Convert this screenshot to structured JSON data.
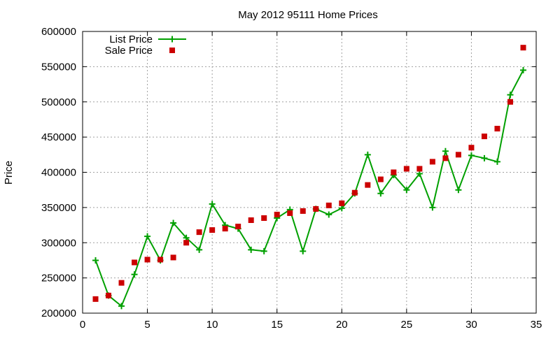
{
  "chart_data": {
    "type": "line",
    "title": "May 2012 95111 Home Prices",
    "xlabel": "",
    "ylabel": "Price",
    "xlim": [
      0,
      35
    ],
    "ylim": [
      200000,
      600000
    ],
    "x_ticks": [
      0,
      5,
      10,
      15,
      20,
      25,
      30,
      35
    ],
    "y_ticks": [
      200000,
      250000,
      300000,
      350000,
      400000,
      450000,
      500000,
      550000,
      600000
    ],
    "grid": true,
    "legend_position": "top-left",
    "colors": {
      "list": "#00a000",
      "sale": "#cc0000",
      "grid": "#a0a0a0",
      "axis": "#000000"
    },
    "series": [
      {
        "name": "List Price",
        "style": "lines+markers",
        "marker": "plus",
        "x": [
          1,
          2,
          3,
          4,
          5,
          6,
          7,
          8,
          9,
          10,
          11,
          12,
          13,
          14,
          15,
          16,
          17,
          18,
          19,
          20,
          21,
          22,
          23,
          24,
          25,
          26,
          27,
          28,
          29,
          30,
          31,
          32,
          33,
          34
        ],
        "y": [
          275000,
          225000,
          210000,
          255000,
          309000,
          275000,
          328000,
          307000,
          290000,
          355000,
          325000,
          320000,
          290000,
          288000,
          335000,
          347000,
          288000,
          348000,
          340000,
          349000,
          370000,
          425000,
          370000,
          396000,
          375000,
          398000,
          350000,
          430000,
          375000,
          424000,
          420000,
          415000,
          510000,
          545000
        ]
      },
      {
        "name": "Sale Price",
        "style": "points",
        "marker": "square",
        "x": [
          1,
          2,
          3,
          4,
          5,
          6,
          7,
          8,
          9,
          10,
          11,
          12,
          13,
          14,
          15,
          16,
          17,
          18,
          19,
          20,
          21,
          22,
          23,
          24,
          25,
          26,
          27,
          28,
          29,
          30,
          31,
          32,
          33,
          34
        ],
        "y": [
          220000,
          225000,
          243000,
          272000,
          276000,
          276000,
          279000,
          300000,
          315000,
          318000,
          320000,
          323000,
          332000,
          335000,
          340000,
          342000,
          345000,
          348000,
          353000,
          356000,
          371000,
          382000,
          390000,
          400000,
          405000,
          405000,
          415000,
          420000,
          425000,
          435000,
          451000,
          462000,
          500000,
          577000
        ]
      }
    ]
  }
}
